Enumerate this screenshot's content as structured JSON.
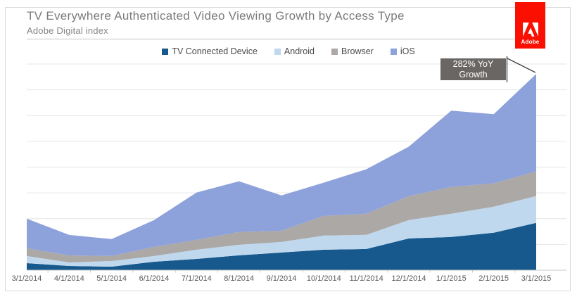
{
  "header": {
    "title": "TV Everywhere Authenticated Video Viewing Growth by Access Type",
    "subtitle": "Adobe Digital index"
  },
  "logo": {
    "text": "Adobe"
  },
  "chart_data": {
    "type": "area",
    "stacked": true,
    "title": "TV Everywhere Authenticated Video Viewing Growth by Access Type",
    "subtitle": "Adobe Digital index",
    "legend_position": "top",
    "grid": true,
    "x_labels": [
      "3/1/2014",
      "4/1/2014",
      "5/1/2014",
      "6/1/2014",
      "7/1/2014",
      "8/1/2014",
      "9/1/2014",
      "10/1/2014",
      "11/1/2014",
      "12/1/2014",
      "1/1/2015",
      "2/1/2015",
      "3/1/2015"
    ],
    "y_axis": {
      "labels_shown": false,
      "min": 0,
      "max": 400,
      "gridline_interval": 50
    },
    "series": [
      {
        "name": "TV Connected Device",
        "color": "#17598c",
        "values": [
          13.7,
          8.2,
          6.8,
          16.4,
          21.9,
          28.8,
          34.2,
          39.7,
          41.1,
          61.6,
          64.4,
          72.6,
          91.8
        ]
      },
      {
        "name": "Android",
        "color": "#bfd8ee",
        "values": [
          13.7,
          6.8,
          11.0,
          11.0,
          17.8,
          20.5,
          20.5,
          27.4,
          27.4,
          35.6,
          45.2,
          50.7,
          52.1
        ]
      },
      {
        "name": "Browser",
        "color": "#aca8a5",
        "values": [
          15.1,
          13.7,
          9.6,
          17.8,
          19.2,
          24.7,
          21.9,
          38.4,
          41.1,
          46.6,
          52.1,
          45.2,
          47.9
        ]
      },
      {
        "name": "iOS",
        "color": "#8da1db",
        "values": [
          57.5,
          39.7,
          32.9,
          52.1,
          91.8,
          98.6,
          68.5,
          64.4,
          86.3,
          95.9,
          147.9,
          134.2,
          189.0
        ]
      }
    ],
    "annotation": {
      "line1": "282% YoY",
      "line2": "Growth",
      "points_to_x": "3/1/2015"
    },
    "colors": {
      "grid": "#e6e6e6",
      "axis": "#c9c9c9",
      "callout_bg": "#6a6663",
      "adobe_red": "#fa0f00"
    }
  }
}
